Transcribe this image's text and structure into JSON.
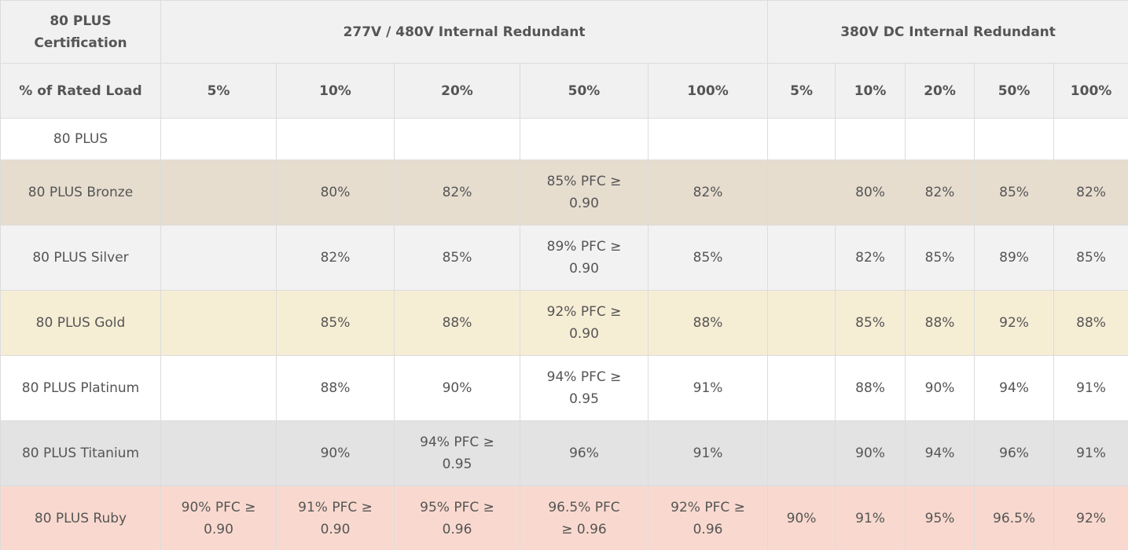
{
  "header": {
    "certification_label": "80 PLUS Certification",
    "group_ac": "277V / 480V Internal Redundant",
    "group_dc": "380V DC Internal Redundant",
    "load_label": "% of Rated Load",
    "ac_loads": [
      "5%",
      "10%",
      "20%",
      "50%",
      "100%"
    ],
    "dc_loads": [
      "5%",
      "10%",
      "20%",
      "50%",
      "100%"
    ]
  },
  "rows": [
    {
      "name": "80 PLUS",
      "bg": "#ffffff",
      "ac": [
        "",
        "",
        "",
        "",
        ""
      ],
      "dc": [
        "",
        "",
        "",
        "",
        ""
      ]
    },
    {
      "name": "80 PLUS Bronze",
      "bg": "#e6ddcf",
      "ac": [
        "",
        "80%",
        "82%",
        "85% PFC ≥ 0.90",
        "82%"
      ],
      "dc": [
        "",
        "80%",
        "82%",
        "85%",
        "82%"
      ]
    },
    {
      "name": "80 PLUS Silver",
      "bg": "#f2f2f2",
      "ac": [
        "",
        "82%",
        "85%",
        "89% PFC ≥ 0.90",
        "85%"
      ],
      "dc": [
        "",
        "82%",
        "85%",
        "89%",
        "85%"
      ]
    },
    {
      "name": "80 PLUS Gold",
      "bg": "#f6edd5",
      "ac": [
        "",
        "85%",
        "88%",
        "92% PFC ≥ 0.90",
        "88%"
      ],
      "dc": [
        "",
        "85%",
        "88%",
        "92%",
        "88%"
      ]
    },
    {
      "name": "80 PLUS Platinum",
      "bg": "#ffffff",
      "ac": [
        "",
        "88%",
        "90%",
        "94% PFC ≥ 0.95",
        "91%"
      ],
      "dc": [
        "",
        "88%",
        "90%",
        "94%",
        "91%"
      ]
    },
    {
      "name": "80 PLUS Titanium",
      "bg": "#e3e3e3",
      "ac": [
        "",
        "90%",
        "94% PFC ≥ 0.95",
        "96%",
        "91%"
      ],
      "dc": [
        "",
        "90%",
        "94%",
        "96%",
        "91%"
      ]
    },
    {
      "name": "80 PLUS Ruby",
      "bg": "#f9d9cf",
      "ac": [
        "90% PFC ≥ 0.90",
        "91% PFC ≥ 0.90",
        "95% PFC ≥ 0.96",
        "96.5% PFC ≥ 0.96",
        "92% PFC ≥ 0.96"
      ],
      "dc": [
        "90%",
        "91%",
        "95%",
        "96.5%",
        "92%"
      ]
    }
  ]
}
